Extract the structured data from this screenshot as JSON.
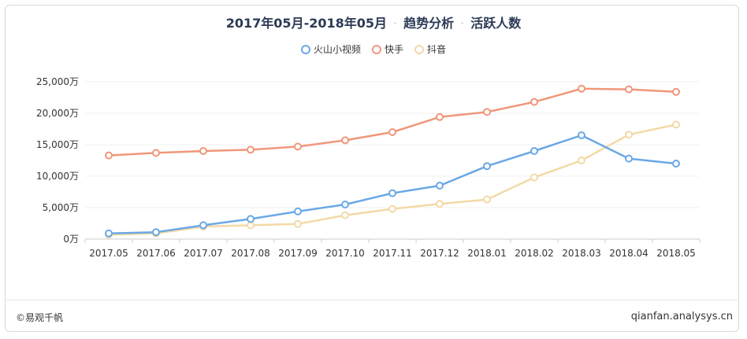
{
  "title": {
    "period": "2017年05月-2018年05月",
    "sep": "·",
    "section": "趋势分析",
    "metric": "活跃人数"
  },
  "footer": {
    "copyright": "©易观千帆",
    "site": "qianfan.analysys.cn"
  },
  "chart_data": {
    "type": "line",
    "categories": [
      "2017.05",
      "2017.06",
      "2017.07",
      "2017.08",
      "2017.09",
      "2017.10",
      "2017.11",
      "2017.12",
      "2018.01",
      "2018.02",
      "2018.03",
      "2018.04",
      "2018.05"
    ],
    "series": [
      {
        "name": "火山小视频",
        "color": "#6aa8e6",
        "values": [
          900,
          1100,
          2200,
          3200,
          4400,
          5500,
          7300,
          8500,
          11600,
          14000,
          16500,
          12800,
          12000
        ]
      },
      {
        "name": "快手",
        "color": "#f0977a",
        "values": [
          13300,
          13700,
          14000,
          14200,
          14700,
          15700,
          17000,
          19400,
          20200,
          21800,
          23900,
          23800,
          23400
        ]
      },
      {
        "name": "抖音",
        "color": "#f3d9a6",
        "values": [
          700,
          900,
          2000,
          2200,
          2400,
          3800,
          4800,
          5600,
          6300,
          9800,
          12500,
          16600,
          18200
        ]
      }
    ],
    "yticks": [
      "0万",
      "5,000万",
      "10,000万",
      "15,000万",
      "20,000万",
      "25,000万"
    ],
    "ytick_values": [
      0,
      5000,
      10000,
      15000,
      20000,
      25000
    ],
    "ylim": [
      0,
      25000
    ],
    "grid": true,
    "legend": "top-center"
  }
}
